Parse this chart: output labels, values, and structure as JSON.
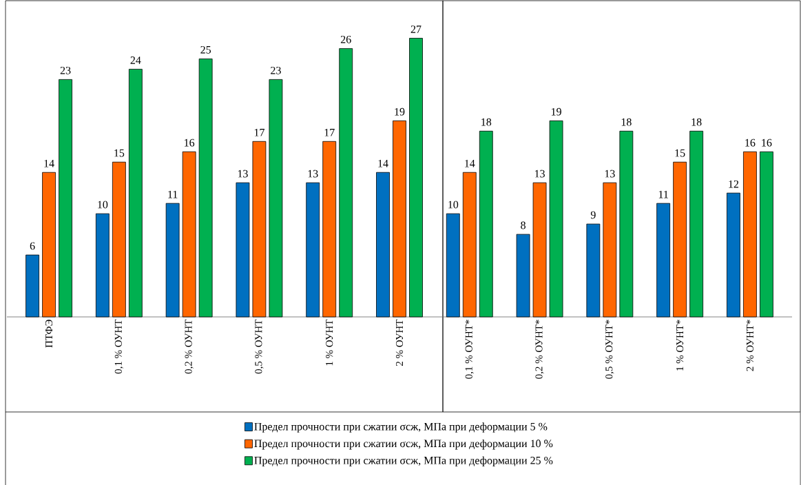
{
  "chart_data": {
    "type": "bar",
    "categories": [
      "ПТФЭ",
      "0,1 % ОУНТ",
      "0,2 % ОУНТ",
      "0,5 % ОУНТ",
      "1 % ОУНТ",
      "2 % ОУНТ",
      "0,1 % ОУНТ*",
      "0,2 % ОУНТ*",
      "0,5 % ОУНТ*",
      "1 % ОУНТ*",
      "2 % ОУНТ*"
    ],
    "series": [
      {
        "name": "Предел прочности при сжатии σсж, МПа при деформации 5 %",
        "color": "#0070c0",
        "values": [
          6,
          10,
          11,
          13,
          13,
          14,
          10,
          8,
          9,
          11,
          12
        ]
      },
      {
        "name": "Предел прочности при сжатии σсж, МПа при деформации 10 %",
        "color": "#ff6600",
        "values": [
          14,
          15,
          16,
          17,
          17,
          19,
          14,
          13,
          13,
          15,
          16
        ]
      },
      {
        "name": "Предел прочности при сжатии σсж, МПа при деформации 25 %",
        "color": "#00b050",
        "values": [
          23,
          24,
          25,
          23,
          26,
          27,
          18,
          19,
          18,
          18,
          16
        ]
      }
    ],
    "data_labels": true,
    "legend": "bottom"
  }
}
